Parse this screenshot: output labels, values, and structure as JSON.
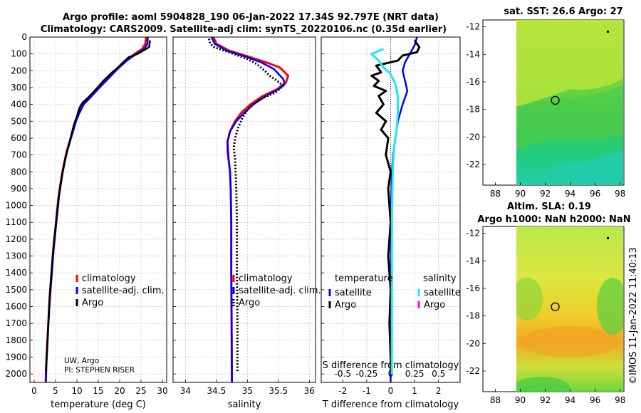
{
  "header": {
    "title_line1": "Argo profile: aoml 5904828_190 06-Jan-2022 17.34S 92.797E (NRT data)",
    "title_line2": "Climatology: CARS2009. Satellite-adj clim: synTS_20220106.nc (0.35d earlier)"
  },
  "copyright": "©IMOS 11-Jan-2022 11:40:13",
  "colors": {
    "climatology": "#ff0000",
    "satellite": "#0000ff",
    "argo": "#000000",
    "sal_satellite": "#22e5f0",
    "sal_argo": "#ff00ff"
  },
  "chart_data": [
    {
      "type": "line",
      "id": "temperature",
      "xlabel": "temperature (deg C)",
      "ylabel": "",
      "xlim": [
        -1,
        31
      ],
      "ylim": [
        2050,
        0
      ],
      "xticks": [
        "0",
        "5",
        "10",
        "15",
        "20",
        "25",
        "30"
      ],
      "yticks": [
        "0",
        "100",
        "200",
        "300",
        "400",
        "500",
        "600",
        "700",
        "800",
        "900",
        "1000",
        "1100",
        "1200",
        "1300",
        "1400",
        "1500",
        "1600",
        "1700",
        "1800",
        "1900",
        "2000"
      ],
      "grid": true,
      "legend": [
        "climatology",
        "satellite-adj. clim.",
        "Argo"
      ],
      "legend_position": "lower-right",
      "annotation": [
        "UW, Argo",
        "PI: STEPHEN RISER"
      ],
      "series": [
        {
          "name": "climatology",
          "points": [
            [
              26.2,
              0
            ],
            [
              26.0,
              40
            ],
            [
              25.3,
              70
            ],
            [
              23.5,
              100
            ],
            [
              21.5,
              140
            ],
            [
              19.3,
              190
            ],
            [
              17.5,
              240
            ],
            [
              15.2,
              300
            ],
            [
              13.0,
              360
            ],
            [
              11.5,
              400
            ],
            [
              10.5,
              450
            ],
            [
              9.7,
              500
            ],
            [
              9.0,
              560
            ],
            [
              8.3,
              620
            ],
            [
              7.6,
              680
            ],
            [
              7.0,
              750
            ],
            [
              6.6,
              800
            ],
            [
              6.1,
              880
            ],
            [
              5.7,
              950
            ],
            [
              5.3,
              1050
            ],
            [
              4.9,
              1150
            ],
            [
              4.5,
              1250
            ],
            [
              4.2,
              1350
            ],
            [
              3.9,
              1450
            ],
            [
              3.6,
              1550
            ],
            [
              3.4,
              1650
            ],
            [
              3.2,
              1750
            ],
            [
              3.0,
              1850
            ],
            [
              2.8,
              1950
            ],
            [
              2.7,
              2050
            ]
          ]
        },
        {
          "name": "satellite-adj. clim.",
          "points": [
            [
              26.6,
              0
            ],
            [
              26.5,
              40
            ],
            [
              25.8,
              70
            ],
            [
              23.9,
              100
            ],
            [
              21.7,
              140
            ],
            [
              19.5,
              190
            ],
            [
              17.6,
              240
            ],
            [
              15.3,
              300
            ],
            [
              13.1,
              360
            ],
            [
              11.6,
              400
            ],
            [
              10.6,
              450
            ],
            [
              9.8,
              500
            ],
            [
              9.1,
              560
            ],
            [
              8.4,
              620
            ],
            [
              7.7,
              680
            ],
            [
              7.1,
              750
            ],
            [
              6.7,
              800
            ],
            [
              6.2,
              880
            ],
            [
              5.8,
              950
            ],
            [
              5.4,
              1050
            ],
            [
              5.0,
              1150
            ],
            [
              4.6,
              1250
            ],
            [
              4.3,
              1350
            ],
            [
              4.0,
              1450
            ],
            [
              3.7,
              1550
            ],
            [
              3.45,
              1650
            ],
            [
              3.25,
              1750
            ],
            [
              3.05,
              1850
            ],
            [
              2.85,
              1950
            ],
            [
              2.75,
              2050
            ]
          ]
        },
        {
          "name": "Argo",
          "points": [
            [
              27.1,
              20
            ],
            [
              27.0,
              40
            ],
            [
              26.9,
              60
            ],
            [
              25.6,
              80
            ],
            [
              24.2,
              100
            ],
            [
              22.1,
              120
            ],
            [
              20.8,
              150
            ],
            [
              19.2,
              190
            ],
            [
              18.0,
              215
            ],
            [
              16.2,
              260
            ],
            [
              14.8,
              300
            ],
            [
              12.6,
              360
            ],
            [
              11.3,
              390
            ],
            [
              10.6,
              420
            ],
            [
              10.0,
              470
            ],
            [
              9.3,
              520
            ],
            [
              8.8,
              570
            ],
            [
              8.3,
              620
            ],
            [
              7.8,
              670
            ],
            [
              7.3,
              720
            ],
            [
              6.9,
              770
            ],
            [
              6.4,
              840
            ],
            [
              6.0,
              900
            ],
            [
              5.6,
              980
            ],
            [
              5.2,
              1080
            ],
            [
              4.8,
              1180
            ],
            [
              4.4,
              1280
            ],
            [
              4.1,
              1380
            ],
            [
              3.8,
              1480
            ],
            [
              3.55,
              1580
            ],
            [
              3.35,
              1680
            ],
            [
              3.15,
              1780
            ],
            [
              2.95,
              1880
            ],
            [
              2.8,
              1960
            ],
            [
              2.75,
              1990
            ]
          ]
        }
      ]
    },
    {
      "type": "line",
      "id": "salinity",
      "xlabel": "salinity",
      "ylabel": "",
      "xlim": [
        33.8,
        36.1
      ],
      "ylim": [
        2050,
        0
      ],
      "xticks": [
        "34",
        "34.5",
        "35",
        "35.5",
        "36"
      ],
      "grid": true,
      "legend": [
        "climatology",
        "satellite-adj. clim.",
        "Argo"
      ],
      "legend_position": "lower-right",
      "series": [
        {
          "name": "climatology",
          "points": [
            [
              34.45,
              0
            ],
            [
              34.5,
              40
            ],
            [
              34.7,
              80
            ],
            [
              35.05,
              120
            ],
            [
              35.3,
              150
            ],
            [
              35.52,
              180
            ],
            [
              35.66,
              230
            ],
            [
              35.62,
              270
            ],
            [
              35.48,
              310
            ],
            [
              35.25,
              350
            ],
            [
              35.05,
              400
            ],
            [
              34.9,
              450
            ],
            [
              34.8,
              500
            ],
            [
              34.72,
              560
            ],
            [
              34.68,
              620
            ],
            [
              34.68,
              680
            ],
            [
              34.7,
              740
            ],
            [
              34.72,
              800
            ],
            [
              34.73,
              900
            ],
            [
              34.74,
              1100
            ],
            [
              34.74,
              1400
            ],
            [
              34.745,
              1700
            ],
            [
              34.75,
              2050
            ]
          ]
        },
        {
          "name": "satellite-adj. clim.",
          "points": [
            [
              34.42,
              0
            ],
            [
              34.47,
              40
            ],
            [
              34.66,
              80
            ],
            [
              35.0,
              120
            ],
            [
              35.22,
              150
            ],
            [
              35.43,
              190
            ],
            [
              35.58,
              250
            ],
            [
              35.6,
              280
            ],
            [
              35.5,
              310
            ],
            [
              35.3,
              350
            ],
            [
              35.1,
              400
            ],
            [
              34.95,
              450
            ],
            [
              34.82,
              500
            ],
            [
              34.72,
              560
            ],
            [
              34.68,
              620
            ],
            [
              34.69,
              680
            ],
            [
              34.7,
              740
            ],
            [
              34.72,
              800
            ],
            [
              34.73,
              900
            ],
            [
              34.74,
              1100
            ],
            [
              34.74,
              1400
            ],
            [
              34.745,
              1700
            ],
            [
              34.75,
              2050
            ]
          ]
        },
        {
          "name": "Argo",
          "points": [
            [
              34.38,
              10
            ],
            [
              34.4,
              40
            ],
            [
              34.46,
              60
            ],
            [
              34.7,
              90
            ],
            [
              35.0,
              130
            ],
            [
              35.15,
              160
            ],
            [
              35.28,
              200
            ],
            [
              35.36,
              230
            ],
            [
              35.48,
              260
            ],
            [
              35.58,
              290
            ],
            [
              35.45,
              330
            ],
            [
              35.2,
              370
            ],
            [
              35.02,
              420
            ],
            [
              34.92,
              480
            ],
            [
              34.85,
              540
            ],
            [
              34.8,
              600
            ],
            [
              34.78,
              660
            ],
            [
              34.8,
              720
            ],
            [
              34.81,
              800
            ],
            [
              34.82,
              900
            ],
            [
              34.83,
              1100
            ],
            [
              34.83,
              1400
            ],
            [
              34.84,
              1700
            ],
            [
              34.84,
              1990
            ]
          ]
        }
      ]
    },
    {
      "type": "line",
      "id": "difference",
      "xlabel": "T difference from climatology",
      "xlabel_top": "S difference from climatology",
      "ylabel": "",
      "xlim": [
        -2.9,
        2.9
      ],
      "ylim": [
        2050,
        0
      ],
      "xticks": [
        "-2",
        "-1",
        "0",
        "1",
        "2"
      ],
      "xticks_top": [
        "-0.5",
        "-0.25",
        "0",
        "0.25",
        "0.5"
      ],
      "grid": true,
      "legend_temperature_heading": "temperature",
      "legend_salinity_heading": "salinity",
      "legend_temperature": [
        "satellite",
        "Argo"
      ],
      "legend_salinity": [
        "satellite",
        "Argo"
      ],
      "legend_position": "lower",
      "series": [
        {
          "name": "temperature satellite",
          "points": [
            [
              1.1,
              0
            ],
            [
              1.0,
              50
            ],
            [
              0.8,
              100
            ],
            [
              0.6,
              150
            ],
            [
              0.5,
              200
            ],
            [
              0.6,
              260
            ],
            [
              0.7,
              320
            ],
            [
              0.5,
              400
            ],
            [
              0.3,
              500
            ],
            [
              0.2,
              600
            ],
            [
              0.1,
              700
            ],
            [
              0.05,
              800
            ],
            [
              0.02,
              1000
            ],
            [
              0.0,
              1500
            ],
            [
              0.0,
              2050
            ]
          ]
        },
        {
          "name": "temperature Argo",
          "points": [
            [
              1.0,
              20
            ],
            [
              1.2,
              60
            ],
            [
              1.1,
              90
            ],
            [
              0.5,
              110
            ],
            [
              0.3,
              140
            ],
            [
              -0.6,
              170
            ],
            [
              -0.4,
              210
            ],
            [
              -0.8,
              230
            ],
            [
              -0.5,
              260
            ],
            [
              -0.7,
              290
            ],
            [
              -0.2,
              320
            ],
            [
              -0.5,
              350
            ],
            [
              -0.3,
              400
            ],
            [
              -0.6,
              450
            ],
            [
              -0.2,
              500
            ],
            [
              -0.4,
              550
            ],
            [
              -0.1,
              600
            ],
            [
              -0.2,
              700
            ],
            [
              0.0,
              800
            ],
            [
              -0.1,
              900
            ],
            [
              0.0,
              1100
            ],
            [
              -0.1,
              1300
            ],
            [
              0.0,
              1500
            ],
            [
              -0.05,
              1700
            ],
            [
              0.0,
              1900
            ],
            [
              0.0,
              1990
            ]
          ]
        },
        {
          "name": "salinity satellite",
          "points": [
            [
              -0.3,
              70
            ],
            [
              -0.8,
              100
            ],
            [
              -0.5,
              140
            ],
            [
              -0.3,
              180
            ],
            [
              0.0,
              220
            ],
            [
              0.2,
              280
            ],
            [
              0.3,
              350
            ],
            [
              0.3,
              450
            ],
            [
              0.25,
              550
            ],
            [
              0.15,
              650
            ],
            [
              0.1,
              750
            ],
            [
              0.08,
              850
            ],
            [
              0.06,
              1000
            ],
            [
              0.05,
              1200
            ],
            [
              0.05,
              1500
            ],
            [
              0.05,
              1800
            ],
            [
              0.05,
              2000
            ]
          ]
        }
      ]
    },
    {
      "type": "heatmap",
      "id": "sst_map",
      "title": "sat. SST: 26.6 Argo: 27",
      "xticks": [
        "88",
        "90",
        "92",
        "94",
        "96",
        "98"
      ],
      "yticks": [
        "-12",
        "-14",
        "-16",
        "-18",
        "-20",
        "-22"
      ],
      "xlim": [
        87,
        98.3
      ],
      "ylim": [
        -23.5,
        -11.5
      ],
      "profile_marker": {
        "lon": 92.797,
        "lat": -17.34
      }
    },
    {
      "type": "heatmap",
      "id": "sla_map",
      "title_line1": "Altim. SLA: 0.19",
      "title_line2": "Argo h1000: NaN h2000: NaN",
      "xticks": [
        "88",
        "90",
        "92",
        "94",
        "96",
        "98"
      ],
      "yticks": [
        "-12",
        "-14",
        "-16",
        "-18",
        "-20",
        "-22"
      ],
      "xlim": [
        87,
        98.3
      ],
      "ylim": [
        -23.5,
        -11.5
      ],
      "profile_marker": {
        "lon": 92.797,
        "lat": -17.34
      }
    }
  ]
}
